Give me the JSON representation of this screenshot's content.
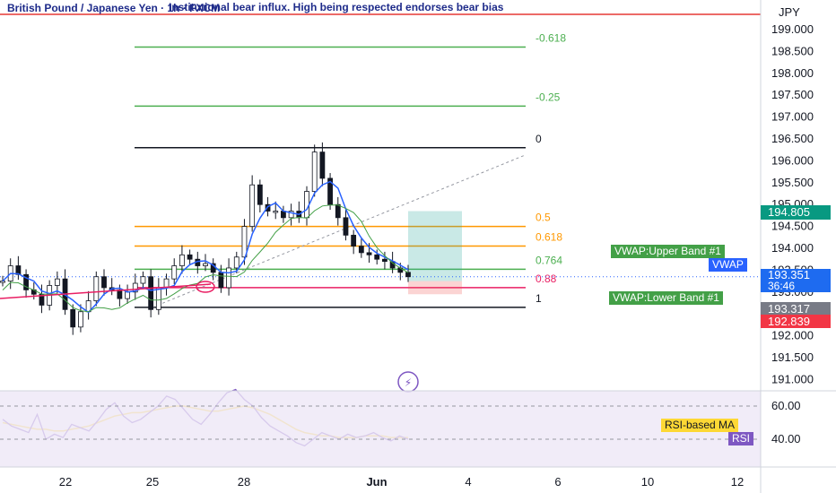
{
  "header": {
    "symbol": "British Pound / Japanese Yen · 1h · FXCM",
    "note": "Institutional bear influx. High being respected endorses bear bias",
    "currency": "JPY"
  },
  "price_tags": {
    "vwap_upper_label": "VWAP:Upper Band #1",
    "vwap_label": "VWAP",
    "vwap_lower_label": "VWAP:Lower Band #1",
    "tag_green": "194.805",
    "tag_last": "193.351",
    "tag_countdown": "36:46",
    "tag_grey": "193.317",
    "tag_red": "192.839",
    "rsi_ma_label": "RSI-based MA",
    "rsi_label": "RSI"
  },
  "colors": {
    "fib_green": "#4caf50",
    "fib_orange": "#ff9800",
    "fib_red": "#e91e63",
    "vwap_green": "#43a047",
    "candle": "#131722",
    "ma_blue": "#2962ff",
    "rsi_purple": "#7e57c2",
    "rsi_ma_yellow": "#fdd835",
    "long_green": "#26a69a",
    "short_red": "#ef5350"
  },
  "chart_data": [
    {
      "type": "line",
      "title": "British Pound / Japanese Yen · 1h · FXCM",
      "x_ticks": [
        "22",
        "25",
        "28",
        "Jun",
        "4",
        "6",
        "10",
        "12"
      ],
      "y_ticks": [
        191.0,
        191.5,
        192.0,
        192.5,
        193.0,
        193.5,
        194.0,
        194.5,
        195.0,
        195.5,
        196.0,
        196.5,
        197.0,
        197.5,
        198.0,
        198.5,
        199.0
      ],
      "ylim": [
        190.7,
        199.9
      ],
      "fib_levels": [
        {
          "label": "-0.618",
          "price": 198.6
        },
        {
          "label": "-0.25",
          "price": 197.25
        },
        {
          "label": "0",
          "price": 196.3
        },
        {
          "label": "0.5",
          "price": 194.5
        },
        {
          "label": "0.618",
          "price": 194.05
        },
        {
          "label": "0.764",
          "price": 193.52
        },
        {
          "label": "0.88",
          "price": 193.1
        },
        {
          "label": "1",
          "price": 192.65
        }
      ],
      "close_series": [
        193.25,
        193.6,
        193.4,
        193.05,
        192.95,
        192.7,
        193.15,
        193.3,
        192.6,
        192.2,
        192.55,
        192.8,
        193.35,
        193.1,
        193.05,
        192.85,
        193.0,
        193.2,
        193.35,
        192.6,
        193.1,
        193.3,
        193.6,
        193.85,
        193.75,
        193.6,
        193.65,
        193.45,
        193.1,
        193.55,
        193.8,
        194.5,
        195.45,
        195.0,
        194.85,
        194.85,
        194.7,
        194.85,
        194.7,
        195.3,
        196.2,
        195.6,
        195.0,
        194.7,
        194.3,
        194.05,
        193.9,
        193.85,
        193.75,
        193.7,
        193.55,
        193.45,
        193.35
      ],
      "resistance_line": 199.7,
      "long_position": {
        "entry": 193.25,
        "target": 194.85,
        "stop": 192.95
      }
    },
    {
      "type": "line",
      "title": "RSI",
      "y_ticks": [
        40.0,
        60.0
      ],
      "rsi_series": [
        52,
        48,
        46,
        44,
        55,
        40,
        43,
        41,
        49,
        47,
        45,
        51,
        58,
        62,
        54,
        50,
        52,
        56,
        60,
        66,
        64,
        58,
        52,
        49,
        55,
        62,
        68,
        70,
        64,
        60,
        53,
        48,
        45,
        42,
        38,
        36,
        40,
        44,
        42,
        40,
        43,
        41,
        42,
        44,
        41,
        39,
        42,
        40
      ],
      "rsi_ma_series": [
        50,
        49,
        48,
        47,
        46,
        46,
        45,
        45,
        46,
        47,
        48,
        50,
        52,
        54,
        55,
        56,
        56,
        57,
        58,
        59,
        60,
        60,
        59,
        58,
        57,
        57,
        58,
        59,
        60,
        59,
        57,
        55,
        52,
        49,
        46,
        44,
        43,
        42,
        42,
        41,
        41,
        41,
        42,
        42,
        42,
        41,
        41,
        41
      ]
    }
  ]
}
